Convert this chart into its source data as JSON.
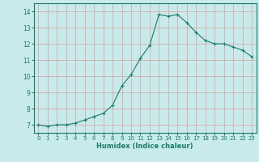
{
  "x": [
    0,
    1,
    2,
    3,
    4,
    5,
    6,
    7,
    8,
    9,
    10,
    11,
    12,
    13,
    14,
    15,
    16,
    17,
    18,
    19,
    20,
    21,
    22,
    23
  ],
  "y": [
    7.0,
    6.9,
    7.0,
    7.0,
    7.1,
    7.3,
    7.5,
    7.7,
    8.2,
    9.4,
    10.1,
    11.1,
    11.9,
    13.8,
    13.7,
    13.8,
    13.3,
    12.7,
    12.2,
    12.0,
    12.0,
    11.8,
    11.6,
    11.2
  ],
  "xlabel": "Humidex (Indice chaleur)",
  "ylim": [
    6.5,
    14.5
  ],
  "xlim": [
    -0.5,
    23.5
  ],
  "yticks": [
    7,
    8,
    9,
    10,
    11,
    12,
    13,
    14
  ],
  "xticks": [
    0,
    1,
    2,
    3,
    4,
    5,
    6,
    7,
    8,
    9,
    10,
    11,
    12,
    13,
    14,
    15,
    16,
    17,
    18,
    19,
    20,
    21,
    22,
    23
  ],
  "line_color": "#1a7a6e",
  "marker_color": "#1a7a6e",
  "bg_color": "#c8eaea",
  "grid_color_major": "#d4a0a0",
  "grid_color_minor": "#b8d8d8",
  "spine_color": "#1a7a6e",
  "tick_color": "#1a7a6e",
  "label_color": "#1a7a6e"
}
